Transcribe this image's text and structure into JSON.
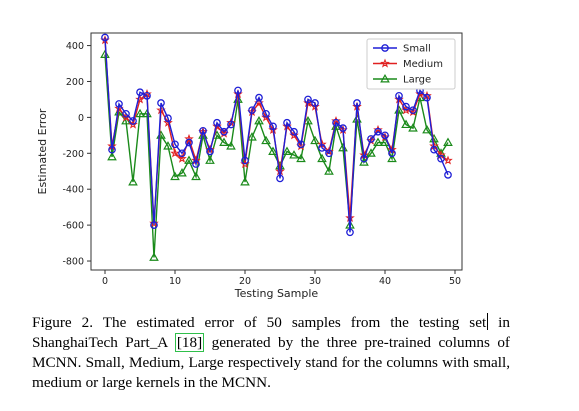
{
  "chart_data": {
    "type": "line",
    "title": "",
    "xlabel": "Testing Sample",
    "ylabel": "Estimated Error",
    "xlim": [
      -2,
      51
    ],
    "ylim": [
      -850,
      470
    ],
    "xticks": [
      0,
      10,
      20,
      30,
      40,
      50
    ],
    "yticks": [
      -800,
      -600,
      -400,
      -200,
      0,
      200,
      400
    ],
    "x": [
      0,
      1,
      2,
      3,
      4,
      5,
      6,
      7,
      8,
      9,
      10,
      11,
      12,
      13,
      14,
      15,
      16,
      17,
      18,
      19,
      20,
      21,
      22,
      23,
      24,
      25,
      26,
      27,
      28,
      29,
      30,
      31,
      32,
      33,
      34,
      35,
      36,
      37,
      38,
      39,
      40,
      41,
      42,
      43,
      44,
      45,
      46,
      47,
      48,
      49
    ],
    "legend_position": "top-right",
    "series": [
      {
        "name": "Small",
        "color": "#1f1fd6",
        "marker": "circle",
        "values": [
          445,
          -180,
          75,
          20,
          -20,
          140,
          120,
          -600,
          80,
          -5,
          -150,
          -200,
          -140,
          -260,
          -75,
          -190,
          -30,
          -80,
          -40,
          150,
          -240,
          40,
          110,
          20,
          -50,
          -340,
          -30,
          -80,
          -150,
          100,
          80,
          -170,
          -200,
          -30,
          -60,
          -640,
          80,
          -230,
          -120,
          -80,
          -100,
          -200,
          120,
          60,
          40,
          150,
          110,
          -180,
          -230,
          -320
        ]
      },
      {
        "name": "Medium",
        "color": "#e02020",
        "marker": "star",
        "values": [
          430,
          -160,
          50,
          0,
          -40,
          100,
          130,
          -590,
          40,
          -30,
          -200,
          -230,
          -120,
          -240,
          -80,
          -180,
          -50,
          -90,
          -30,
          130,
          -260,
          30,
          80,
          0,
          -70,
          -300,
          -50,
          -100,
          -160,
          80,
          60,
          -150,
          -190,
          -20,
          -70,
          -560,
          60,
          -210,
          -130,
          -70,
          -110,
          -180,
          100,
          40,
          30,
          130,
          120,
          -160,
          -210,
          -240
        ]
      },
      {
        "name": "Large",
        "color": "#1a8a1a",
        "marker": "triangle",
        "values": [
          350,
          -220,
          30,
          -20,
          -360,
          20,
          20,
          -780,
          -100,
          -160,
          -330,
          -310,
          -240,
          -330,
          -100,
          -240,
          -100,
          -140,
          -160,
          100,
          -360,
          -110,
          -20,
          -130,
          -190,
          -270,
          -190,
          -210,
          -230,
          -20,
          -130,
          -230,
          -300,
          -50,
          -170,
          -600,
          -10,
          -250,
          -200,
          -140,
          -140,
          -230,
          40,
          -40,
          -60,
          110,
          -70,
          -120,
          -200,
          -140
        ]
      }
    ]
  },
  "caption": {
    "part1": "Figure 2. The estimated error of 50 samples from the testing set",
    "part2": "in ShanghaiTech Part_A ",
    "ref": "[18]",
    "part3": " generated by the three pre-trained columns of MCNN. Small, Medium, Large respectively stand for the columns with small, medium or large kernels in the MCNN."
  }
}
